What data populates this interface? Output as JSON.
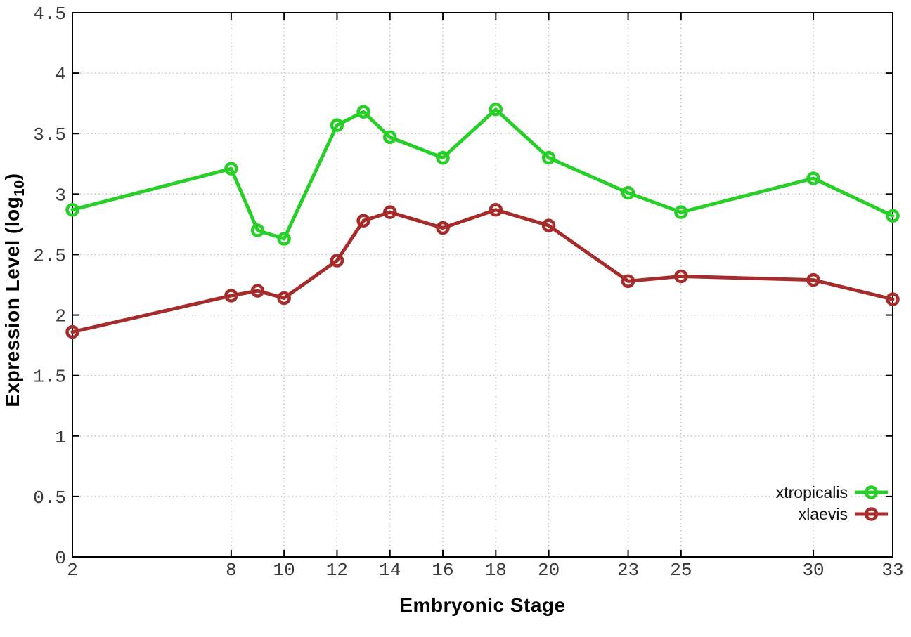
{
  "chart_data": {
    "type": "line",
    "title": "",
    "xlabel": "Embryonic Stage",
    "ylabel": "Expression Level (log10)",
    "ylabel_parts": {
      "prefix": "Expression Level (log",
      "sub": "10",
      "suffix": ")"
    },
    "x": [
      2,
      8,
      9,
      10,
      12,
      13,
      14,
      16,
      18,
      20,
      23,
      25,
      30,
      33
    ],
    "series": [
      {
        "name": "xtropicalis",
        "color": "#28cf28",
        "values": [
          2.87,
          3.21,
          2.7,
          2.63,
          3.57,
          3.68,
          3.47,
          3.3,
          3.7,
          3.3,
          3.01,
          2.85,
          3.13,
          2.82
        ]
      },
      {
        "name": "xlaevis",
        "color": "#a62b2b",
        "values": [
          1.86,
          2.16,
          2.2,
          2.14,
          2.45,
          2.78,
          2.85,
          2.72,
          2.87,
          2.74,
          2.28,
          2.32,
          2.29,
          2.13
        ]
      }
    ],
    "xlim": [
      2,
      33
    ],
    "ylim": [
      0,
      4.5
    ],
    "xticks": [
      2,
      8,
      10,
      12,
      14,
      16,
      18,
      20,
      23,
      25,
      30,
      33
    ],
    "xtick_labels": [
      "2",
      "8",
      "10",
      "12",
      "14",
      "16",
      "18",
      "20",
      "23",
      "25",
      "30",
      "33"
    ],
    "yticks": [
      0,
      0.5,
      1,
      1.5,
      2,
      2.5,
      3,
      3.5,
      4,
      4.5
    ],
    "ytick_labels": [
      "0",
      "0.5",
      "1",
      "1.5",
      "2",
      "2.5",
      "3",
      "3.5",
      "4",
      "4.5"
    ],
    "grid": true,
    "legend_position": "bottom-right",
    "marker": "open-circle"
  },
  "colors": {
    "background": "#ffffff",
    "frame": "#000000",
    "grid": "#b9b9b9",
    "tick_label": "#3a3a3a",
    "axis_label": "#000000",
    "xtropicalis": "#28cf28",
    "xlaevis": "#a62b2b"
  }
}
